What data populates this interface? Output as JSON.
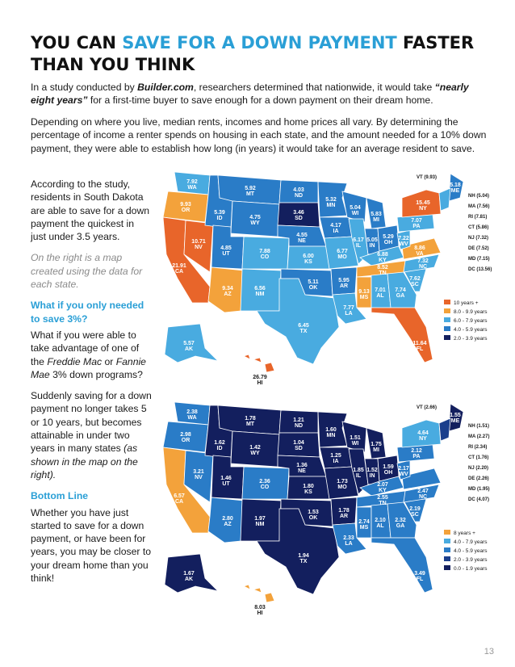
{
  "title": {
    "part1": "YOU CAN ",
    "accent": "SAVE FOR A DOWN PAYMENT",
    "part2": " FASTER THAN YOU THINK"
  },
  "intro": {
    "p1_a": "In a study conducted by ",
    "p1_source": "Builder.com",
    "p1_b": ", researchers determined that nationwide, it would take ",
    "p1_quote": "“nearly eight years”",
    "p1_c": " for a first-time buyer to save enough for a down payment on their dream home.",
    "p2": "Depending on where you live, median rents, incomes and home prices all vary. By determining the percentage of income a renter spends on housing in each state, and the amount needed for a 10% down payment, they were able to establish how long (in years) it would take for an average resident to save."
  },
  "column": {
    "c1": "According to the study, residents in South Dakota are able to save for a down payment the quickest in just under 3.5 years.",
    "c2": "On the right is a map created using the data for each state.",
    "c3": "What if you only needed to save 3%?",
    "c4_a": "What if you were able to take advantage of one of the ",
    "c4_fm": "Freddie Mac",
    "c4_or": " or ",
    "c4_fnm": "Fannie Mae",
    "c4_b": " 3% down programs?",
    "c5_a": "Suddenly saving for a down payment no longer takes 5 or 10 years, but becomes attainable in under two years in many states ",
    "c5_b": "(as shown in the map on the right).",
    "c6": "Bottom Line",
    "c7": "Whether you have just started to save for a down payment, or have been for years, you may be closer to your dream home than you think!"
  },
  "colors": {
    "orange": "#e8652a",
    "light_orange": "#f3a23b",
    "light_blue": "#49abe0",
    "mid_blue": "#2a7cc7",
    "dark_blue": "#1b3f8c",
    "navy": "#131f5e"
  },
  "map1": {
    "legend": [
      "10 years +",
      "8.0 - 9.9 years",
      "6.0 - 7.9 years",
      "4.0 - 5.9 years",
      "2.0 - 3.9 years"
    ],
    "states": [
      {
        "v": "7.92",
        "s": "WA"
      },
      {
        "v": "9.93",
        "s": "OR"
      },
      {
        "v": "10.71",
        "s": "NV"
      },
      {
        "v": "21.91",
        "s": "CA"
      },
      {
        "v": "5.39",
        "s": "ID"
      },
      {
        "v": "5.92",
        "s": "MT"
      },
      {
        "v": "4.75",
        "s": "WY"
      },
      {
        "v": "4.85",
        "s": "UT"
      },
      {
        "v": "9.34",
        "s": "AZ"
      },
      {
        "v": "7.88",
        "s": "CO"
      },
      {
        "v": "6.56",
        "s": "NM"
      },
      {
        "v": "4.03",
        "s": "ND"
      },
      {
        "v": "3.46",
        "s": "SD"
      },
      {
        "v": "4.55",
        "s": "NE"
      },
      {
        "v": "6.00",
        "s": "KS"
      },
      {
        "v": "5.11",
        "s": "OK"
      },
      {
        "v": "6.45",
        "s": "TX"
      },
      {
        "v": "5.32",
        "s": "MN"
      },
      {
        "v": "4.17",
        "s": "IA"
      },
      {
        "v": "6.77",
        "s": "MO"
      },
      {
        "v": "5.95",
        "s": "AR"
      },
      {
        "v": "7.77",
        "s": "LA"
      },
      {
        "v": "5.04",
        "s": "WI"
      },
      {
        "v": "6.17",
        "s": "IL"
      },
      {
        "v": "5.83",
        "s": "MI"
      },
      {
        "v": "5.05",
        "s": "IN"
      },
      {
        "v": "5.29",
        "s": "OH"
      },
      {
        "v": "6.88",
        "s": "KY"
      },
      {
        "v": "8.52",
        "s": "TN"
      },
      {
        "v": "9.13",
        "s": "MS"
      },
      {
        "v": "7.01",
        "s": "AL"
      },
      {
        "v": "7.74",
        "s": "GA"
      },
      {
        "v": "11.64",
        "s": "FL"
      },
      {
        "v": "7.62",
        "s": "SC"
      },
      {
        "v": "7.32",
        "s": "NC"
      },
      {
        "v": "8.86",
        "s": "VA"
      },
      {
        "v": "7.22",
        "s": "WV"
      },
      {
        "v": "7.07",
        "s": "PA"
      },
      {
        "v": "15.45",
        "s": "NY"
      },
      {
        "v": "5.18",
        "s": "ME"
      },
      {
        "v": "5.57",
        "s": "AK"
      },
      {
        "v": "26.79",
        "s": "HI"
      }
    ],
    "side": [
      "VT (9.93)",
      "NH (5.04)",
      "MA (7.56)",
      "RI (7.81)",
      "CT (5.86)",
      "NJ (7.32)",
      "DE (7.52)",
      "MD (7.15)",
      "DC (13.56)"
    ]
  },
  "map2": {
    "legend": [
      "8 years +",
      "4.0 - 7.9 years",
      "4.0 - 5.9 years",
      "2.0 - 3.9 years",
      "0.0 - 1.9 years"
    ],
    "states": [
      {
        "v": "2.38",
        "s": "WA"
      },
      {
        "v": "2.98",
        "s": "OR"
      },
      {
        "v": "3.21",
        "s": "NV"
      },
      {
        "v": "6.57",
        "s": "CA"
      },
      {
        "v": "1.62",
        "s": "ID"
      },
      {
        "v": "1.78",
        "s": "MT"
      },
      {
        "v": "1.42",
        "s": "WY"
      },
      {
        "v": "1.46",
        "s": "UT"
      },
      {
        "v": "2.80",
        "s": "AZ"
      },
      {
        "v": "2.36",
        "s": "CO"
      },
      {
        "v": "1.97",
        "s": "NM"
      },
      {
        "v": "1.21",
        "s": "ND"
      },
      {
        "v": "1.04",
        "s": "SD"
      },
      {
        "v": "1.36",
        "s": "NE"
      },
      {
        "v": "1.80",
        "s": "KS"
      },
      {
        "v": "1.53",
        "s": "OK"
      },
      {
        "v": "1.94",
        "s": "TX"
      },
      {
        "v": "1.60",
        "s": "MN"
      },
      {
        "v": "1.25",
        "s": "IA"
      },
      {
        "v": "1.73",
        "s": "MO"
      },
      {
        "v": "1.78",
        "s": "AR"
      },
      {
        "v": "2.33",
        "s": "LA"
      },
      {
        "v": "1.51",
        "s": "WI"
      },
      {
        "v": "1.85",
        "s": "IL"
      },
      {
        "v": "1.75",
        "s": "MI"
      },
      {
        "v": "1.52",
        "s": "IN"
      },
      {
        "v": "1.59",
        "s": "OH"
      },
      {
        "v": "2.07",
        "s": "KY"
      },
      {
        "v": "2.55",
        "s": "TN"
      },
      {
        "v": "2.74",
        "s": "MS"
      },
      {
        "v": "2.10",
        "s": "AL"
      },
      {
        "v": "2.32",
        "s": "GA"
      },
      {
        "v": "3.49",
        "s": "FL"
      },
      {
        "v": "2.19",
        "s": "SC"
      },
      {
        "v": "2.47",
        "s": "NC"
      },
      {
        "v": "2.17",
        "s": "WV"
      },
      {
        "v": "2.12",
        "s": "PA"
      },
      {
        "v": "4.64",
        "s": "NY"
      },
      {
        "v": "1.55",
        "s": "ME"
      },
      {
        "v": "1.67",
        "s": "AK"
      },
      {
        "v": "8.03",
        "s": "HI"
      }
    ],
    "side": [
      "VT (2.66)",
      "NH (1.51)",
      "MA (2.27)",
      "RI (2.34)",
      "CT (1.76)",
      "NJ (2.20)",
      "DE (2.26)",
      "MD (1.95)",
      "DC (4.07)"
    ]
  },
  "page_number": "13"
}
